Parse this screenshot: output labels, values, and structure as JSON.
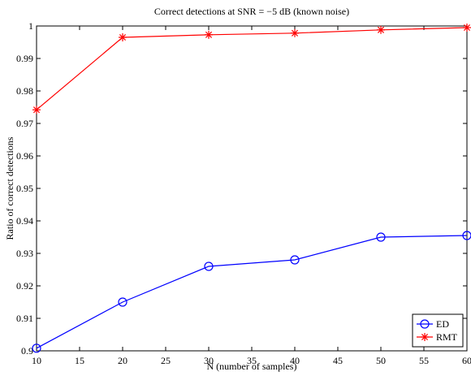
{
  "chart_data": {
    "type": "line",
    "title": "Correct detections at SNR = −5 dB (known noise)",
    "xlabel": "N (number of samples)",
    "ylabel": "Ratio of correct detections",
    "xlim": [
      10,
      60
    ],
    "ylim": [
      0.9,
      1.0
    ],
    "x_ticks": [
      "10",
      "15",
      "20",
      "25",
      "30",
      "35",
      "40",
      "45",
      "50",
      "55",
      "60"
    ],
    "y_ticks": [
      "0.9",
      "0.91",
      "0.92",
      "0.93",
      "0.94",
      "0.95",
      "0.96",
      "0.97",
      "0.98",
      "0.99",
      "1"
    ],
    "grid": false,
    "legend_position": "bottom-right",
    "x": [
      10,
      20,
      30,
      40,
      50,
      60
    ],
    "series": [
      {
        "name": "ED",
        "color": "#0000ff",
        "marker": "circle",
        "values": [
          0.9008,
          0.915,
          0.926,
          0.928,
          0.935,
          0.9355
        ]
      },
      {
        "name": "RMT",
        "color": "#ff0000",
        "marker": "asterisk",
        "values": [
          0.9742,
          0.9965,
          0.9973,
          0.9978,
          0.9988,
          0.9995
        ]
      }
    ]
  }
}
